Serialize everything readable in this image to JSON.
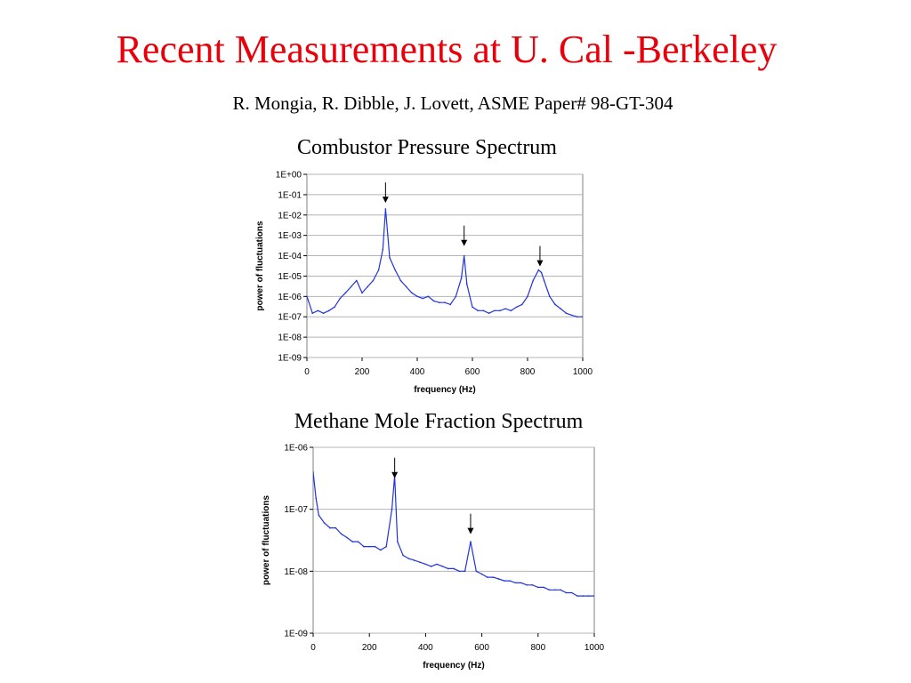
{
  "page": {
    "title": "Recent Measurements at U. Cal -Berkeley",
    "subtitle": "R. Mongia, R. Dibble, J. Lovett, ASME Paper# 98-GT-304"
  },
  "colors": {
    "title": "#e8000b",
    "series": "#2233dd",
    "grid": "#b4b4b4"
  },
  "chart_data": [
    {
      "type": "line",
      "title": "Combustor Pressure Spectrum",
      "xlabel": "frequency (Hz)",
      "ylabel": "power of fluctuations",
      "xlim": [
        0,
        1000
      ],
      "ylim": [
        1e-09,
        1
      ],
      "yscale": "log",
      "grid": true,
      "x_ticks": [
        "0",
        "200",
        "400",
        "600",
        "800",
        "1000"
      ],
      "y_ticks": [
        "1E+00",
        "1E-01",
        "1E-02",
        "1E-03",
        "1E-04",
        "1E-05",
        "1E-06",
        "1E-07",
        "1E-08",
        "1E-09"
      ],
      "series": [
        {
          "x": [
            0,
            20,
            40,
            60,
            80,
            100,
            120,
            140,
            160,
            180,
            200,
            220,
            240,
            260,
            275,
            285,
            300,
            320,
            340,
            360,
            380,
            400,
            420,
            440,
            460,
            480,
            500,
            520,
            540,
            560,
            570,
            580,
            600,
            620,
            640,
            660,
            680,
            700,
            720,
            740,
            760,
            780,
            800,
            820,
            840,
            850,
            860,
            880,
            900,
            920,
            940,
            960,
            980,
            1000
          ],
          "values": [
            1e-06,
            1.5e-07,
            2e-07,
            1.5e-07,
            2e-07,
            3e-07,
            8e-07,
            1.5e-06,
            3e-06,
            6e-06,
            1.5e-06,
            3e-06,
            6e-06,
            2e-05,
            0.0002,
            0.02,
            8e-05,
            2e-05,
            6e-06,
            3e-06,
            1.5e-06,
            1e-06,
            8e-07,
            1e-06,
            6e-07,
            5e-07,
            5e-07,
            4e-07,
            1e-06,
            8e-06,
            0.0001,
            4e-06,
            3e-07,
            2e-07,
            2e-07,
            1.5e-07,
            2e-07,
            2e-07,
            2.5e-07,
            2e-07,
            3e-07,
            4e-07,
            1e-06,
            6e-06,
            2e-05,
            1.5e-05,
            6e-06,
            1e-06,
            4e-07,
            2.5e-07,
            1.5e-07,
            1.2e-07,
            1e-07,
            1e-07
          ]
        }
      ],
      "annotations": [
        {
          "type": "arrow",
          "x": 285,
          "y": 0.08
        },
        {
          "type": "arrow",
          "x": 570,
          "y": 0.0006
        },
        {
          "type": "arrow",
          "x": 845,
          "y": 6e-05
        }
      ]
    },
    {
      "type": "line",
      "title": "Methane Mole Fraction Spectrum",
      "xlabel": "frequency  (Hz)",
      "ylabel": "power of fluctuations",
      "xlim": [
        0,
        1000
      ],
      "ylim": [
        1e-09,
        1e-06
      ],
      "yscale": "log",
      "grid": true,
      "x_ticks": [
        "0",
        "200",
        "400",
        "600",
        "800",
        "1000"
      ],
      "y_ticks": [
        "1E-06",
        "1E-07",
        "1E-08",
        "1E-09"
      ],
      "series": [
        {
          "x": [
            0,
            10,
            20,
            40,
            60,
            80,
            100,
            120,
            140,
            160,
            180,
            200,
            220,
            240,
            260,
            280,
            290,
            300,
            320,
            340,
            360,
            380,
            400,
            420,
            440,
            460,
            480,
            500,
            520,
            540,
            560,
            580,
            600,
            620,
            640,
            660,
            680,
            700,
            720,
            740,
            760,
            780,
            800,
            820,
            840,
            860,
            880,
            900,
            920,
            940,
            960,
            980,
            1000
          ],
          "values": [
            4e-07,
            1.5e-07,
            8e-08,
            6e-08,
            5e-08,
            5e-08,
            4e-08,
            3.5e-08,
            3e-08,
            3e-08,
            2.5e-08,
            2.5e-08,
            2.5e-08,
            2.2e-08,
            2.5e-08,
            1e-07,
            3.5e-07,
            3e-08,
            1.8e-08,
            1.6e-08,
            1.5e-08,
            1.4e-08,
            1.3e-08,
            1.2e-08,
            1.3e-08,
            1.2e-08,
            1.1e-08,
            1.1e-08,
            1e-08,
            1e-08,
            3e-08,
            1e-08,
            9e-09,
            8e-09,
            8e-09,
            7.5e-09,
            7e-09,
            7e-09,
            6.5e-09,
            6.5e-09,
            6e-09,
            6e-09,
            5.5e-09,
            5.5e-09,
            5e-09,
            5e-09,
            5e-09,
            4.5e-09,
            4.5e-09,
            4e-09,
            4e-09,
            4e-09,
            4e-09
          ]
        }
      ],
      "annotations": [
        {
          "type": "arrow",
          "x": 290,
          "y": 4e-07
        },
        {
          "type": "arrow",
          "x": 560,
          "y": 5e-08
        }
      ]
    }
  ]
}
